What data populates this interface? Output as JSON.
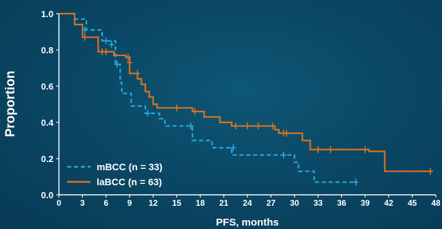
{
  "chart_data": {
    "type": "line",
    "title": "",
    "xlabel": "PFS, months",
    "ylabel": "Proportion",
    "xlim": [
      0,
      48
    ],
    "ylim": [
      0,
      1.0
    ],
    "xticks": [
      "0",
      "3",
      "6",
      "9",
      "12",
      "15",
      "18",
      "21",
      "24",
      "27",
      "30",
      "33",
      "36",
      "39",
      "42",
      "45",
      "48"
    ],
    "yticks": [
      "0.0",
      "0.2",
      "0.4",
      "0.6",
      "0.8",
      "1.0"
    ],
    "legend": "bottom-left",
    "grid": false,
    "series": [
      {
        "name": "mBCC (n = 33)",
        "color": "#2aa7de",
        "dash": true,
        "steps": [
          [
            0,
            1.0
          ],
          [
            2,
            0.97
          ],
          [
            3.5,
            0.91
          ],
          [
            5.5,
            0.85
          ],
          [
            7.2,
            0.72
          ],
          [
            7.8,
            0.62
          ],
          [
            8,
            0.56
          ],
          [
            9.2,
            0.49
          ],
          [
            11,
            0.45
          ],
          [
            12.8,
            0.42
          ],
          [
            13.5,
            0.38
          ],
          [
            17,
            0.3
          ],
          [
            19.5,
            0.26
          ],
          [
            22,
            0.22
          ],
          [
            30,
            0.18
          ],
          [
            30.5,
            0.13
          ],
          [
            32.5,
            0.07
          ],
          [
            38,
            0.07
          ]
        ],
        "censored": [
          [
            3.3,
            0.91
          ],
          [
            6,
            0.85
          ],
          [
            6.7,
            0.83
          ],
          [
            7.4,
            0.72
          ],
          [
            11.3,
            0.45
          ],
          [
            16.8,
            0.38
          ],
          [
            22.2,
            0.26
          ],
          [
            28.6,
            0.22
          ],
          [
            37.8,
            0.07
          ]
        ]
      },
      {
        "name": "laBCC (n = 63)",
        "color": "#e07020",
        "dash": false,
        "steps": [
          [
            0,
            1.0
          ],
          [
            2,
            0.94
          ],
          [
            3,
            0.87
          ],
          [
            5,
            0.79
          ],
          [
            7,
            0.77
          ],
          [
            8.5,
            0.76
          ],
          [
            9,
            0.67
          ],
          [
            10,
            0.64
          ],
          [
            10.5,
            0.61
          ],
          [
            11,
            0.57
          ],
          [
            11.5,
            0.54
          ],
          [
            12,
            0.5
          ],
          [
            12.5,
            0.48
          ],
          [
            17,
            0.46
          ],
          [
            18.5,
            0.43
          ],
          [
            20.5,
            0.4
          ],
          [
            22,
            0.38
          ],
          [
            27.5,
            0.36
          ],
          [
            28,
            0.34
          ],
          [
            31,
            0.3
          ],
          [
            32,
            0.25
          ],
          [
            39.5,
            0.24
          ],
          [
            41.5,
            0.13
          ],
          [
            47.5,
            0.13
          ]
        ],
        "censored": [
          [
            3.3,
            0.87
          ],
          [
            5.5,
            0.79
          ],
          [
            6,
            0.79
          ],
          [
            8.8,
            0.76
          ],
          [
            9,
            0.73
          ],
          [
            10,
            0.67
          ],
          [
            15,
            0.48
          ],
          [
            17.3,
            0.46
          ],
          [
            22.5,
            0.38
          ],
          [
            24,
            0.38
          ],
          [
            25.4,
            0.38
          ],
          [
            27.2,
            0.38
          ],
          [
            28.6,
            0.34
          ],
          [
            29,
            0.34
          ],
          [
            33,
            0.25
          ],
          [
            34.6,
            0.25
          ],
          [
            39,
            0.25
          ],
          [
            47.3,
            0.13
          ]
        ]
      }
    ]
  }
}
